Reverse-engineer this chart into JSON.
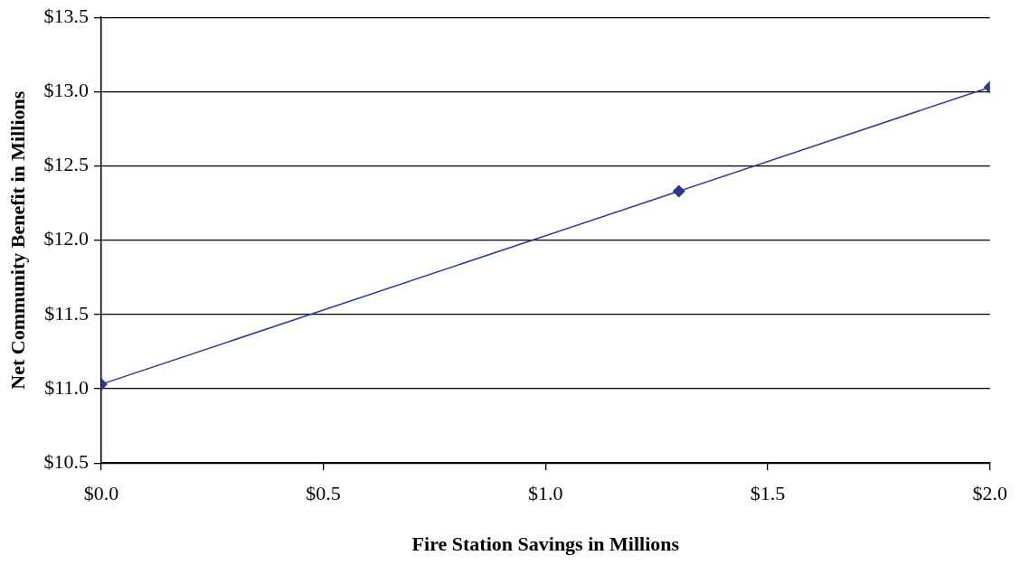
{
  "chart_data": {
    "type": "line",
    "xlabel": "Fire Station Savings in Millions",
    "ylabel": "Net Community Benefit in Millions",
    "x": [
      0.0,
      1.3,
      2.0
    ],
    "series": [
      {
        "color": "#2b3a8c",
        "values": [
          11.03,
          12.33,
          13.03
        ]
      }
    ],
    "xlim": [
      0,
      2
    ],
    "xticks": [
      {
        "value": 0,
        "label": "$0.0"
      },
      {
        "value": 0.5,
        "label": "$0.5"
      },
      {
        "value": 1,
        "label": "$1.0"
      },
      {
        "value": 1.5,
        "label": "$1.5"
      },
      {
        "value": 2,
        "label": "$2.0"
      }
    ],
    "ylim": [
      10.5,
      13.5
    ],
    "yticks": [
      {
        "value": 10.5,
        "label": "$10.5"
      },
      {
        "value": 11,
        "label": "$11.0"
      },
      {
        "value": 11.5,
        "label": "$11.5"
      },
      {
        "value": 12,
        "label": "$12.0"
      },
      {
        "value": 12.5,
        "label": "$12.5"
      },
      {
        "value": 13,
        "label": "$13.0"
      },
      {
        "value": 13.5,
        "label": "$13.5"
      }
    ],
    "grid": "y",
    "marker": "diamond",
    "line_style": "solid",
    "legend": false
  }
}
